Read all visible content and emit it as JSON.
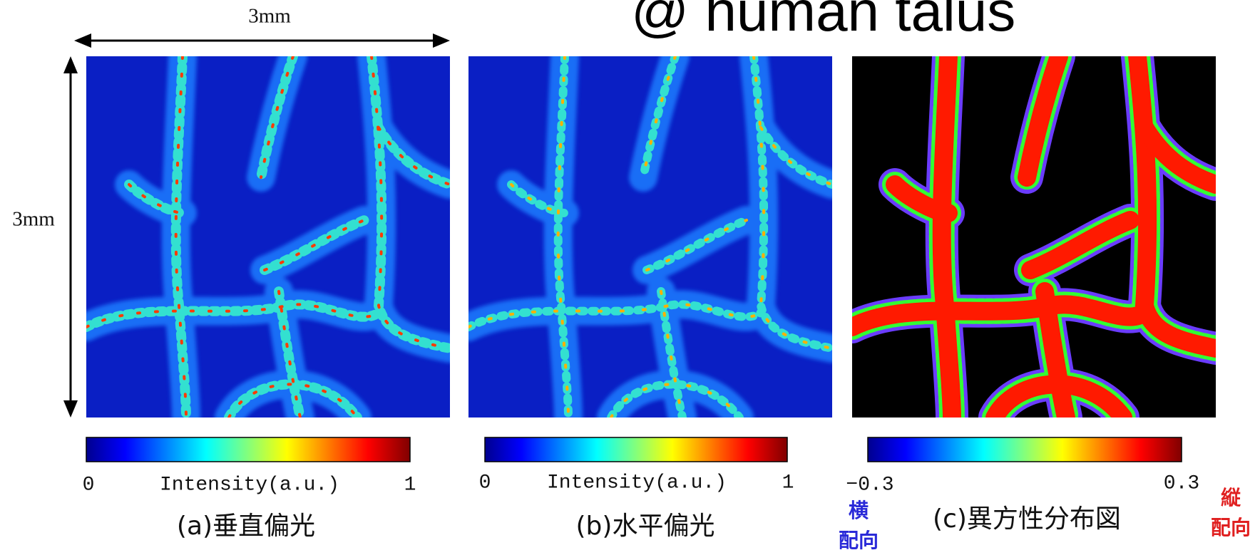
{
  "title": "@ human talus",
  "scale": {
    "width": "3mm",
    "height": "3mm"
  },
  "panels": [
    {
      "caption": "(a)垂直偏光",
      "colorbar": {
        "min": "0",
        "label": "Intensity(a.u.)",
        "max": "1"
      }
    },
    {
      "caption": "(b)水平偏光",
      "colorbar": {
        "min": "0",
        "label": "Intensity(a.u.)",
        "max": "1"
      }
    },
    {
      "caption": "(c)異方性分布図",
      "colorbar": {
        "min": "−0.3",
        "max": "0.3"
      },
      "left_note": [
        "横",
        "配向"
      ],
      "right_note": [
        "縦",
        "配向"
      ]
    }
  ]
}
